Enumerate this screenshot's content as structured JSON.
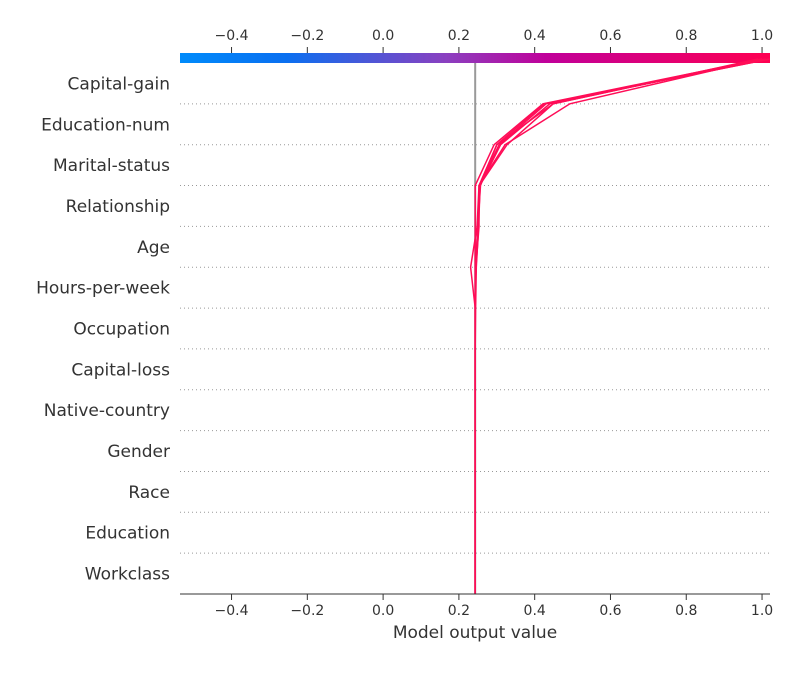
{
  "chart_data": {
    "type": "line",
    "subtype": "decision-plot",
    "xlabel": "Model output value",
    "xlim": [
      -0.536,
      1.021
    ],
    "xticks": [
      -0.4,
      -0.2,
      0.0,
      0.2,
      0.4,
      0.6,
      0.8,
      1.0
    ],
    "xtick_labels": [
      "−0.4",
      "−0.2",
      "0.0",
      "0.2",
      "0.4",
      "0.6",
      "0.8",
      "1.0"
    ],
    "base_value": 0.243,
    "features": [
      "Capital-gain",
      "Education-num",
      "Marital-status",
      "Relationship",
      "Age",
      "Hours-per-week",
      "Occupation",
      "Capital-loss",
      "Native-country",
      "Gender",
      "Race",
      "Education",
      "Workclass"
    ],
    "series_note_order": "cumulative output at each feature boundary, top to bottom",
    "series": [
      {
        "values": [
          1.0,
          0.422,
          0.293,
          0.243,
          0.243,
          0.243,
          0.243,
          0.243,
          0.243,
          0.243,
          0.243,
          0.243,
          0.243,
          0.243
        ]
      },
      {
        "values": [
          1.02,
          0.43,
          0.306,
          0.255,
          0.25,
          0.245,
          0.243,
          0.243,
          0.243,
          0.243,
          0.243,
          0.243,
          0.243,
          0.243
        ]
      },
      {
        "values": [
          1.01,
          0.44,
          0.31,
          0.256,
          0.252,
          0.246,
          0.244,
          0.243,
          0.243,
          0.243,
          0.243,
          0.243,
          0.243,
          0.243
        ]
      },
      {
        "values": [
          1.0,
          0.449,
          0.327,
          0.254,
          0.25,
          0.244,
          0.243,
          0.243,
          0.243,
          0.243,
          0.243,
          0.243,
          0.243,
          0.243
        ]
      },
      {
        "values": [
          0.99,
          0.449,
          0.3,
          0.253,
          0.248,
          0.231,
          0.243,
          0.243,
          0.243,
          0.243,
          0.243,
          0.243,
          0.243,
          0.243
        ]
      },
      {
        "values": [
          1.02,
          0.425,
          0.3,
          0.257,
          0.25,
          0.245,
          0.243,
          0.243,
          0.243,
          0.243,
          0.243,
          0.243,
          0.243,
          0.243
        ]
      },
      {
        "values": [
          1.0,
          0.493,
          0.322,
          0.253,
          0.253,
          0.245,
          0.243,
          0.243,
          0.243,
          0.243,
          0.243,
          0.243,
          0.243,
          0.243
        ]
      }
    ],
    "colorbar": {
      "low_color": "#008bfb",
      "mid_color": "#b8009b",
      "high_color": "#ff0051"
    },
    "line_color": "#ff0d57",
    "grid": "dotted horizontal"
  }
}
